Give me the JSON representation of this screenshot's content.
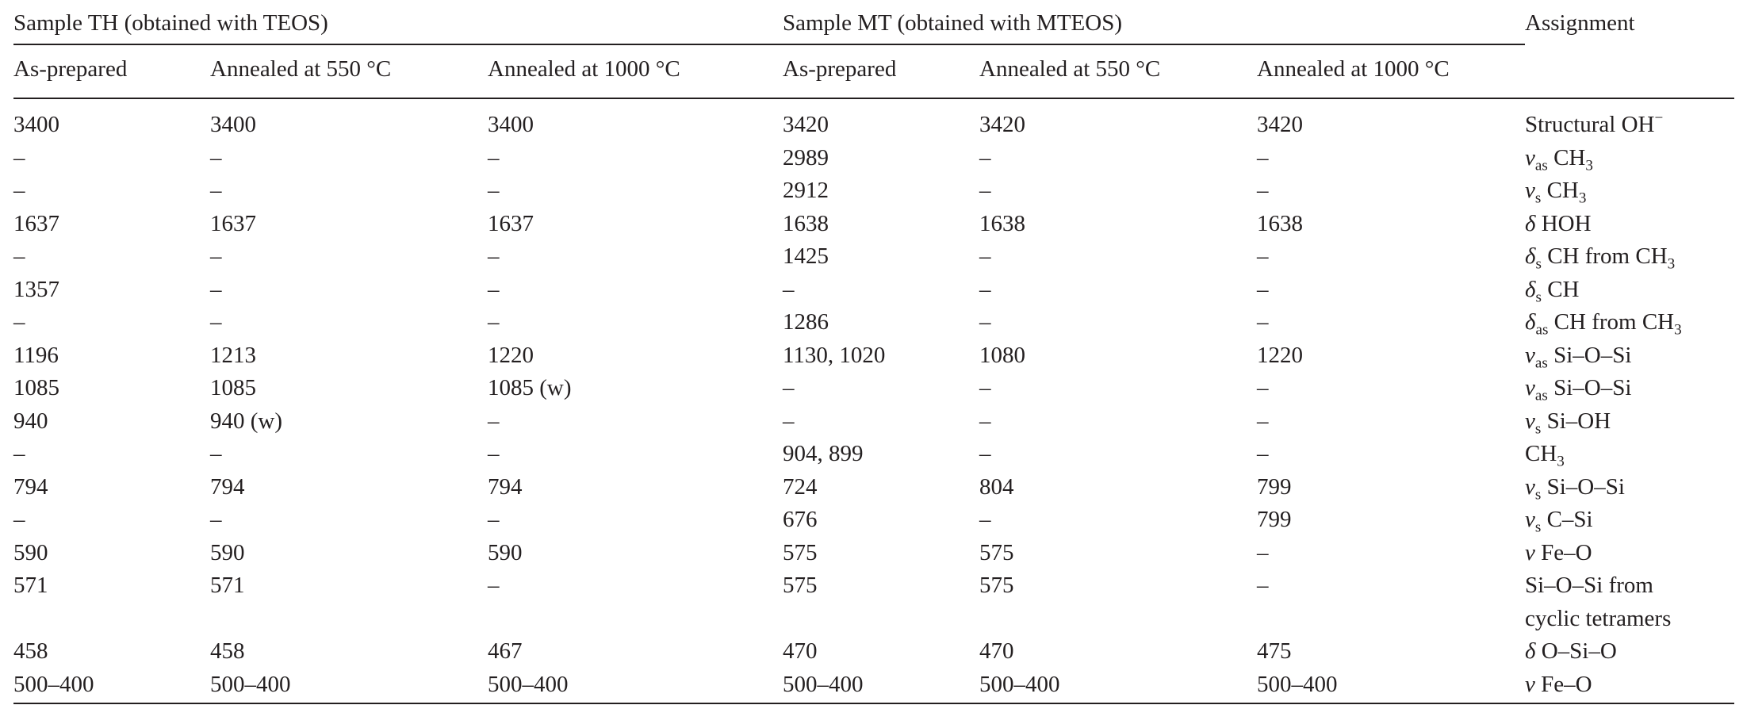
{
  "table": {
    "group_headers": {
      "th": "Sample TH (obtained with TEOS)",
      "mt": "Sample MT (obtained with MTEOS)",
      "assignment": "Assignment"
    },
    "sub_headers": [
      "As-prepared",
      "Annealed at 550 °C",
      "Annealed at 1000 °C",
      "As-prepared",
      "Annealed at 550 °C",
      "Annealed at 1000 °C"
    ],
    "rows": [
      {
        "cells": [
          "3400",
          "3400",
          "3400",
          "3420",
          "3420",
          "3420"
        ],
        "assignment": {
          "prefix": "",
          "sub": "",
          "text": "Structural OH",
          "sup": "−"
        }
      },
      {
        "cells": [
          "–",
          "–",
          "–",
          "2989",
          "–",
          "–"
        ],
        "assignment": {
          "prefix": "ν",
          "sub": "as",
          "text": " CH",
          "sub2": "3"
        }
      },
      {
        "cells": [
          "–",
          "–",
          "–",
          "2912",
          "–",
          "–"
        ],
        "assignment": {
          "prefix": "ν",
          "sub": "s",
          "text": " CH",
          "sub2": "3"
        }
      },
      {
        "cells": [
          "1637",
          "1637",
          "1637",
          "1638",
          "1638",
          "1638"
        ],
        "assignment": {
          "prefix": "δ",
          "sub": "",
          "text": " HOH"
        }
      },
      {
        "cells": [
          "–",
          "–",
          "–",
          "1425",
          "–",
          "–"
        ],
        "assignment": {
          "prefix": "δ",
          "sub": "s",
          "text": " CH from CH",
          "sub2": "3"
        }
      },
      {
        "cells": [
          "1357",
          "–",
          "–",
          "–",
          "–",
          "–"
        ],
        "assignment": {
          "prefix": "δ",
          "sub": "s",
          "text": " CH"
        }
      },
      {
        "cells": [
          "–",
          "–",
          "–",
          "1286",
          "–",
          "–"
        ],
        "assignment": {
          "prefix": "δ",
          "sub": "as",
          "text": " CH from CH",
          "sub2": "3"
        }
      },
      {
        "cells": [
          "1196",
          "1213",
          "1220",
          "1130, 1020",
          "1080",
          "1220"
        ],
        "assignment": {
          "prefix": "ν",
          "sub": "as",
          "text": " Si–O–Si"
        }
      },
      {
        "cells": [
          "1085",
          "1085",
          "1085 (w)",
          "–",
          "–",
          "–"
        ],
        "assignment": {
          "prefix": "ν",
          "sub": "as",
          "text": " Si–O–Si"
        }
      },
      {
        "cells": [
          "940",
          "940 (w)",
          "–",
          "–",
          "–",
          "–"
        ],
        "assignment": {
          "prefix": "ν",
          "sub": "s",
          "text": " Si–OH"
        }
      },
      {
        "cells": [
          "–",
          "–",
          "–",
          "904, 899",
          "–",
          "–"
        ],
        "assignment": {
          "prefix": "",
          "sub": "",
          "text": "CH",
          "sub2": "3"
        }
      },
      {
        "cells": [
          "794",
          "794",
          "794",
          "724",
          "804",
          "799"
        ],
        "assignment": {
          "prefix": "ν",
          "sub": "s",
          "text": " Si–O–Si"
        }
      },
      {
        "cells": [
          "–",
          "–",
          "–",
          "676",
          "–",
          "799"
        ],
        "assignment": {
          "prefix": "ν",
          "sub": "s",
          "text": " C–Si"
        }
      },
      {
        "cells": [
          "590",
          "590",
          "590",
          "575",
          "575",
          "–"
        ],
        "assignment": {
          "prefix": "ν",
          "sub": "",
          "text": " Fe–O"
        }
      },
      {
        "cells": [
          "571",
          "571",
          "–",
          "575",
          "575",
          "–"
        ],
        "assignment": {
          "prefix": "",
          "sub": "",
          "text": "Si–O–Si from",
          "line2": "cyclic tetramers"
        }
      },
      {
        "cells": [
          "458",
          "458",
          "467",
          "470",
          "470",
          "475"
        ],
        "assignment": {
          "prefix": "δ",
          "sub": "",
          "text": " O–Si–O"
        }
      },
      {
        "cells": [
          "500–400",
          "500–400",
          "500–400",
          "500–400",
          "500–400",
          "500–400"
        ],
        "assignment": {
          "prefix": "ν",
          "sub": "",
          "text": " Fe–O"
        }
      }
    ]
  }
}
